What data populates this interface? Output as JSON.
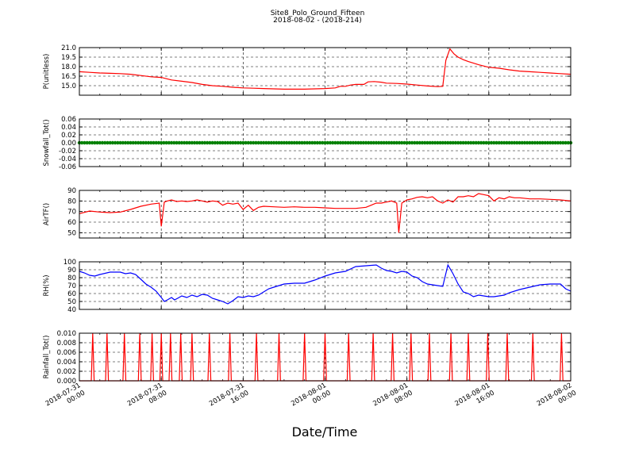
{
  "figure": {
    "title": "Site8_Polo_Ground_Fifteen",
    "subtitle": "2018-08-02 - (2018-214)",
    "xlabel": "Date/Time"
  },
  "chart_data": [
    {
      "type": "line",
      "ylabel": "P(unitless)",
      "ylim": [
        13.5,
        21.0
      ],
      "yticks": [
        "15.0",
        "16.5",
        "18.0",
        "19.5",
        "21.0"
      ],
      "ytick_values": [
        15.0,
        16.5,
        18.0,
        19.5,
        21.0
      ],
      "grid": true,
      "series": [
        {
          "color": "#ff0000",
          "points": [
            [
              0,
              17.2
            ],
            [
              1,
              17.1
            ],
            [
              2,
              17.0
            ],
            [
              3,
              16.95
            ],
            [
              4,
              16.9
            ],
            [
              5,
              16.8
            ],
            [
              6,
              16.6
            ],
            [
              7,
              16.4
            ],
            [
              8,
              16.3
            ],
            [
              9,
              15.9
            ],
            [
              10,
              15.7
            ],
            [
              11,
              15.5
            ],
            [
              12,
              15.2
            ],
            [
              13,
              15.0
            ],
            [
              14,
              14.9
            ],
            [
              15,
              14.75
            ],
            [
              16,
              14.65
            ],
            [
              17,
              14.6
            ],
            [
              18,
              14.55
            ],
            [
              19,
              14.5
            ],
            [
              20,
              14.45
            ],
            [
              21,
              14.45
            ],
            [
              22,
              14.45
            ],
            [
              23,
              14.5
            ],
            [
              24,
              14.55
            ],
            [
              25,
              14.65
            ],
            [
              25.5,
              14.9
            ],
            [
              26,
              14.9
            ],
            [
              26.5,
              15.1
            ],
            [
              27,
              15.2
            ],
            [
              27.8,
              15.2
            ],
            [
              28.2,
              15.6
            ],
            [
              28.8,
              15.65
            ],
            [
              29.5,
              15.55
            ],
            [
              30,
              15.4
            ],
            [
              31,
              15.35
            ],
            [
              32,
              15.25
            ],
            [
              33,
              15.1
            ],
            [
              34,
              14.95
            ],
            [
              35,
              14.85
            ],
            [
              35.5,
              14.9
            ],
            [
              35.8,
              19.0
            ],
            [
              36.2,
              20.8
            ],
            [
              36.6,
              20.0
            ],
            [
              37,
              19.5
            ],
            [
              37.5,
              19.1
            ],
            [
              38,
              18.8
            ],
            [
              38.5,
              18.55
            ],
            [
              39,
              18.3
            ],
            [
              40,
              17.9
            ],
            [
              41,
              17.75
            ],
            [
              42,
              17.5
            ],
            [
              43,
              17.3
            ],
            [
              44,
              17.2
            ],
            [
              45,
              17.1
            ],
            [
              46,
              17.0
            ],
            [
              47,
              16.9
            ],
            [
              48,
              16.8
            ]
          ]
        }
      ]
    },
    {
      "type": "scatter",
      "ylabel": "Snowfall_Tot()",
      "ylim": [
        -0.06,
        0.06
      ],
      "yticks": [
        "-0.06",
        "-0.04",
        "-0.02",
        "0.00",
        "0.02",
        "0.04",
        "0.06"
      ],
      "ytick_values": [
        -0.06,
        -0.04,
        -0.02,
        0.0,
        0.02,
        0.04,
        0.06
      ],
      "grid": true,
      "series": [
        {
          "color": "#008000",
          "constant": 0.0,
          "x_range": [
            0,
            48
          ]
        }
      ]
    },
    {
      "type": "line",
      "ylabel": "AirTF()",
      "ylim": [
        45,
        90
      ],
      "yticks": [
        "50",
        "60",
        "70",
        "80",
        "90"
      ],
      "ytick_values": [
        50,
        60,
        70,
        80,
        90
      ],
      "grid": true,
      "series": [
        {
          "color": "#ff0000",
          "points": [
            [
              0,
              68
            ],
            [
              1,
              70.5
            ],
            [
              2,
              69.5
            ],
            [
              3,
              69
            ],
            [
              4,
              69.5
            ],
            [
              5,
              72
            ],
            [
              6,
              75
            ],
            [
              7,
              77
            ],
            [
              7.8,
              78
            ],
            [
              8,
              56
            ],
            [
              8.3,
              79
            ],
            [
              8.6,
              80
            ],
            [
              9,
              81
            ],
            [
              9.5,
              79.5
            ],
            [
              10,
              80
            ],
            [
              10.5,
              79.5
            ],
            [
              11,
              80
            ],
            [
              11.5,
              81
            ],
            [
              12,
              80
            ],
            [
              12.5,
              79
            ],
            [
              13,
              80
            ],
            [
              13.5,
              79.5
            ],
            [
              14,
              76
            ],
            [
              14.5,
              78
            ],
            [
              15,
              77
            ],
            [
              15.5,
              78
            ],
            [
              16,
              72
            ],
            [
              16.5,
              76
            ],
            [
              17,
              71
            ],
            [
              17.5,
              74
            ],
            [
              18,
              75
            ],
            [
              19,
              74.5
            ],
            [
              20,
              74
            ],
            [
              21,
              74.5
            ],
            [
              22,
              74
            ],
            [
              23,
              74
            ],
            [
              24,
              73.5
            ],
            [
              25,
              73
            ],
            [
              26,
              73
            ],
            [
              27,
              73
            ],
            [
              28,
              74
            ],
            [
              28.5,
              76
            ],
            [
              29,
              78
            ],
            [
              29.5,
              78
            ],
            [
              30,
              79
            ],
            [
              30.5,
              80
            ],
            [
              31,
              78
            ],
            [
              31.2,
              50
            ],
            [
              31.5,
              78
            ],
            [
              32,
              81
            ],
            [
              32.5,
              82
            ],
            [
              33,
              83.5
            ],
            [
              33.5,
              84
            ],
            [
              34,
              83
            ],
            [
              34.5,
              84
            ],
            [
              35,
              80
            ],
            [
              35.5,
              78
            ],
            [
              36,
              81
            ],
            [
              36.5,
              79
            ],
            [
              37,
              84
            ],
            [
              37.5,
              84
            ],
            [
              38,
              85
            ],
            [
              38.5,
              84
            ],
            [
              39,
              87
            ],
            [
              39.5,
              86
            ],
            [
              40,
              85
            ],
            [
              40.5,
              80
            ],
            [
              41,
              83
            ],
            [
              41.5,
              82
            ],
            [
              42,
              84
            ],
            [
              42.5,
              83
            ],
            [
              43,
              83
            ],
            [
              44,
              82
            ],
            [
              45,
              82
            ],
            [
              46,
              81.5
            ],
            [
              47,
              81
            ],
            [
              48,
              80
            ]
          ]
        }
      ]
    },
    {
      "type": "line",
      "ylabel": "RH(%)",
      "ylim": [
        40,
        100
      ],
      "yticks": [
        "40",
        "50",
        "60",
        "70",
        "80",
        "90",
        "100"
      ],
      "ytick_values": [
        40,
        50,
        60,
        70,
        80,
        90,
        100
      ],
      "grid": true,
      "series": [
        {
          "color": "#0000ff",
          "points": [
            [
              0,
              88
            ],
            [
              0.5,
              86
            ],
            [
              1,
              83
            ],
            [
              1.5,
              82
            ],
            [
              2,
              84
            ],
            [
              3,
              87
            ],
            [
              4,
              87
            ],
            [
              4.5,
              85
            ],
            [
              5,
              86
            ],
            [
              5.5,
              84
            ],
            [
              6,
              78
            ],
            [
              6.5,
              72
            ],
            [
              7,
              68
            ],
            [
              7.5,
              63
            ],
            [
              8,
              55
            ],
            [
              8.3,
              50
            ],
            [
              8.6,
              52
            ],
            [
              9,
              55
            ],
            [
              9.3,
              52
            ],
            [
              9.6,
              54
            ],
            [
              10,
              57
            ],
            [
              10.5,
              55
            ],
            [
              11,
              58
            ],
            [
              11.5,
              56
            ],
            [
              12,
              59
            ],
            [
              12.5,
              58
            ],
            [
              13,
              54
            ],
            [
              13.5,
              52
            ],
            [
              14,
              50
            ],
            [
              14.5,
              47
            ],
            [
              15,
              51
            ],
            [
              15.5,
              56
            ],
            [
              16,
              55
            ],
            [
              16.5,
              57
            ],
            [
              17,
              56
            ],
            [
              17.5,
              58
            ],
            [
              18,
              62
            ],
            [
              18.5,
              66
            ],
            [
              19,
              68
            ],
            [
              20,
              72
            ],
            [
              21,
              73
            ],
            [
              22,
              73
            ],
            [
              23,
              77
            ],
            [
              24,
              82
            ],
            [
              25,
              86
            ],
            [
              26,
              88
            ],
            [
              27,
              94
            ],
            [
              28,
              95
            ],
            [
              29,
              96
            ],
            [
              29.5,
              92
            ],
            [
              30,
              89
            ],
            [
              30.5,
              88
            ],
            [
              31,
              86
            ],
            [
              31.5,
              88
            ],
            [
              32,
              87
            ],
            [
              32.5,
              82
            ],
            [
              33,
              80
            ],
            [
              33.5,
              75
            ],
            [
              34,
              72
            ],
            [
              34.5,
              71
            ],
            [
              35,
              70
            ],
            [
              35.5,
              69
            ],
            [
              36,
              96
            ],
            [
              36.5,
              85
            ],
            [
              37,
              72
            ],
            [
              37.5,
              62
            ],
            [
              38,
              60
            ],
            [
              38.5,
              56
            ],
            [
              39,
              58
            ],
            [
              39.5,
              57
            ],
            [
              40,
              56
            ],
            [
              40.5,
              56
            ],
            [
              41,
              57
            ],
            [
              41.5,
              58
            ],
            [
              42,
              61
            ],
            [
              43,
              65
            ],
            [
              44,
              68
            ],
            [
              45,
              71
            ],
            [
              46,
              72
            ],
            [
              47,
              72
            ],
            [
              47.5,
              66
            ],
            [
              48,
              63
            ]
          ]
        }
      ]
    },
    {
      "type": "line",
      "ylabel": "Rainfall_Tot()",
      "ylim": [
        0.0,
        0.01
      ],
      "yticks": [
        "0.000",
        "0.002",
        "0.004",
        "0.006",
        "0.008",
        "0.010"
      ],
      "ytick_values": [
        0.0,
        0.002,
        0.004,
        0.006,
        0.008,
        0.01
      ],
      "grid": true,
      "series": [
        {
          "color": "#ff0000",
          "spike_value": 0.01,
          "spike_x": [
            1.3,
            2.7,
            4.4,
            5.9,
            7.1,
            8.0,
            8.9,
            9.9,
            11.0,
            12.7,
            14.7,
            17.3,
            19.5,
            22.0,
            24.0,
            26.3,
            28.7,
            30.6,
            32.4,
            34.2,
            36.3,
            38.0,
            39.9,
            41.8,
            44.3,
            47.1
          ]
        }
      ]
    }
  ],
  "x_axis": {
    "range_hours": [
      0,
      48
    ],
    "ticks": [
      {
        "pos": 0,
        "line1": "2018-07-31",
        "line2": "00:00"
      },
      {
        "pos": 8,
        "line1": "2018-07-31",
        "line2": "08:00"
      },
      {
        "pos": 16,
        "line1": "2018-07-31",
        "line2": "16:00"
      },
      {
        "pos": 24,
        "line1": "2018-08-01",
        "line2": "00:00"
      },
      {
        "pos": 32,
        "line1": "2018-08-01",
        "line2": "08:00"
      },
      {
        "pos": 40,
        "line1": "2018-08-01",
        "line2": "16:00"
      },
      {
        "pos": 48,
        "line1": "2018-08-02",
        "line2": "00:00"
      }
    ]
  }
}
